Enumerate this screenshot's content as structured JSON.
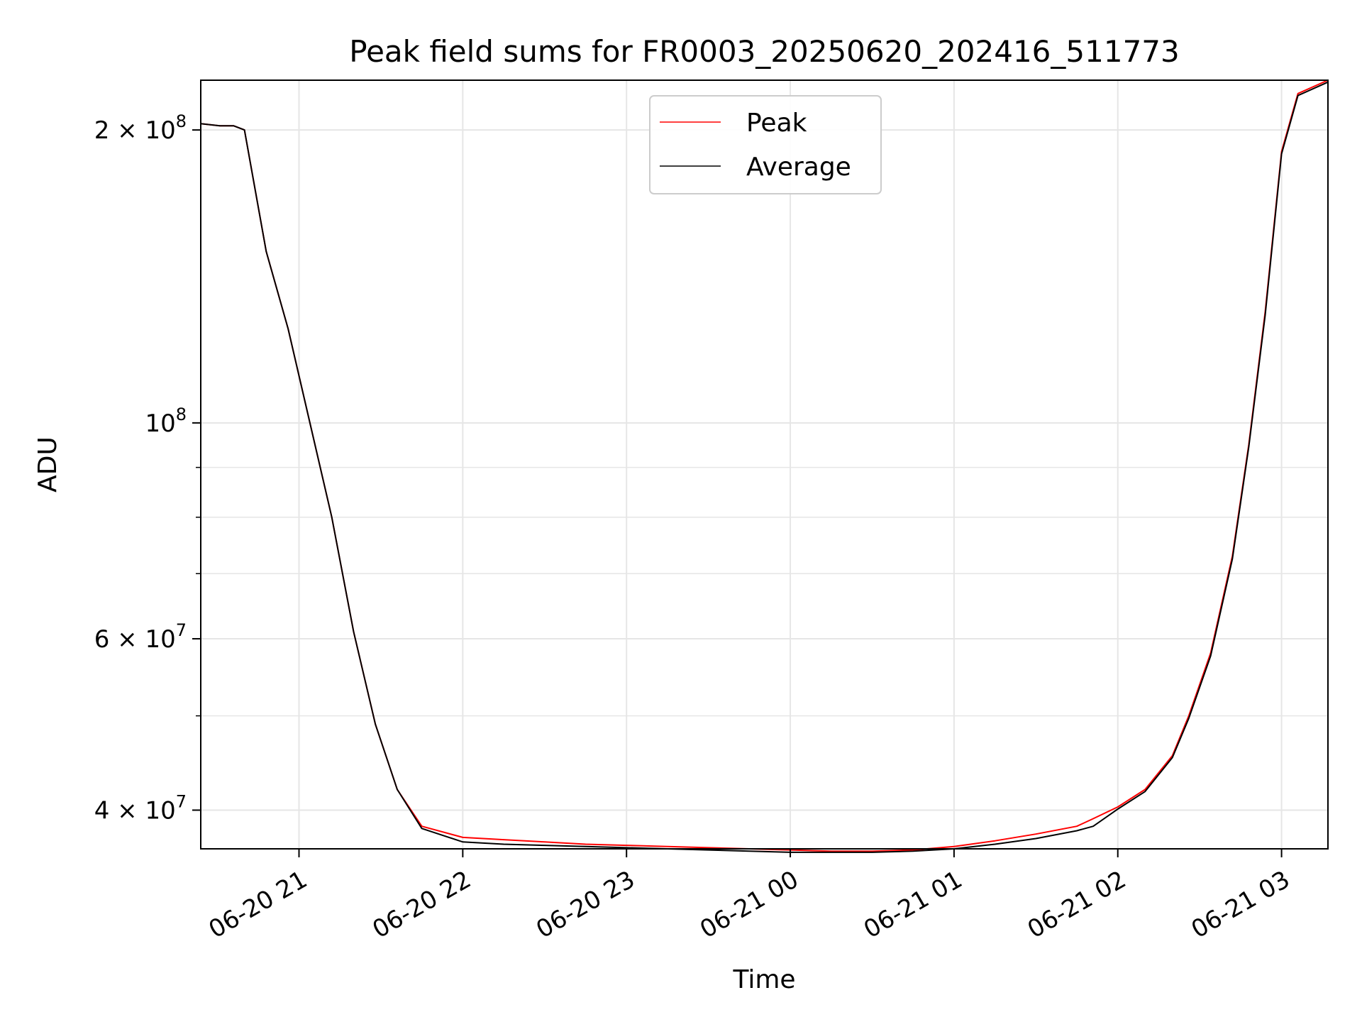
{
  "chart_data": {
    "type": "line",
    "title": "Peak field sums for FR0003_20250620_202416_511773",
    "xlabel": "Time",
    "ylabel": "ADU",
    "yscale": "log",
    "ylim": [
      36500000,
      225000000
    ],
    "xlim": [
      "2025-06-20 20:24",
      "2025-06-21 03:17"
    ],
    "grid": true,
    "legend_position": "top-center",
    "x_tick_labels": [
      "06-20 21",
      "06-20 22",
      "06-20 23",
      "06-21 00",
      "06-21 01",
      "06-21 02",
      "06-21 03"
    ],
    "x_ticks": [
      "2025-06-20 21:00",
      "2025-06-20 22:00",
      "2025-06-20 23:00",
      "2025-06-21 00:00",
      "2025-06-21 01:00",
      "2025-06-21 02:00",
      "2025-06-21 03:00"
    ],
    "y_tick_labels": [
      {
        "value": 40000000,
        "base": "4 × 10",
        "exp": "7"
      },
      {
        "value": 60000000,
        "base": "6 × 10",
        "exp": "7"
      },
      {
        "value": 100000000,
        "base": "10",
        "exp": "8"
      },
      {
        "value": 200000000,
        "base": "2 × 10",
        "exp": "8"
      }
    ],
    "y_minor_ticks": [
      50000000,
      70000000,
      80000000,
      90000000
    ],
    "x": [
      "2025-06-20 20:24",
      "2025-06-20 20:31",
      "2025-06-20 20:36",
      "2025-06-20 20:40",
      "2025-06-20 20:48",
      "2025-06-20 20:56",
      "2025-06-20 21:04",
      "2025-06-20 21:12",
      "2025-06-20 21:20",
      "2025-06-20 21:28",
      "2025-06-20 21:36",
      "2025-06-20 21:45",
      "2025-06-20 22:00",
      "2025-06-20 22:15",
      "2025-06-20 22:30",
      "2025-06-20 22:45",
      "2025-06-20 23:00",
      "2025-06-20 23:15",
      "2025-06-20 23:30",
      "2025-06-20 23:45",
      "2025-06-21 00:00",
      "2025-06-21 00:15",
      "2025-06-21 00:30",
      "2025-06-21 00:45",
      "2025-06-21 01:00",
      "2025-06-21 01:15",
      "2025-06-21 01:30",
      "2025-06-21 01:45",
      "2025-06-21 01:51",
      "2025-06-21 02:00",
      "2025-06-21 02:10",
      "2025-06-21 02:20",
      "2025-06-21 02:26",
      "2025-06-21 02:34",
      "2025-06-21 02:42",
      "2025-06-21 02:48",
      "2025-06-21 02:54",
      "2025-06-21 03:00",
      "2025-06-21 03:06",
      "2025-06-21 03:17"
    ],
    "series": [
      {
        "name": "Peak",
        "color": "#ff0000",
        "values": [
          203000000,
          202000000,
          202000000,
          200000000,
          150000000,
          125000000,
          100000000,
          80000000,
          61000000,
          49000000,
          42000000,
          38500000,
          37500000,
          37300000,
          37100000,
          36900000,
          36800000,
          36700000,
          36600000,
          36500000,
          36400000,
          36300000,
          36300000,
          36400000,
          36700000,
          37200000,
          37800000,
          38500000,
          39200000,
          40300000,
          42000000,
          45500000,
          50000000,
          58000000,
          73000000,
          95000000,
          130000000,
          190000000,
          218000000,
          225000000
        ]
      },
      {
        "name": "Average",
        "color": "#000000",
        "values": [
          203000000,
          202000000,
          202000000,
          200000000,
          150000000,
          125000000,
          100000000,
          80000000,
          61000000,
          49000000,
          42000000,
          38300000,
          37100000,
          36900000,
          36800000,
          36700000,
          36600000,
          36500000,
          36400000,
          36300000,
          36200000,
          36200000,
          36200000,
          36300000,
          36500000,
          36900000,
          37400000,
          38100000,
          38500000,
          40100000,
          41800000,
          45300000,
          49700000,
          57600000,
          72500000,
          94500000,
          129000000,
          189000000,
          217000000,
          224000000
        ]
      }
    ]
  }
}
